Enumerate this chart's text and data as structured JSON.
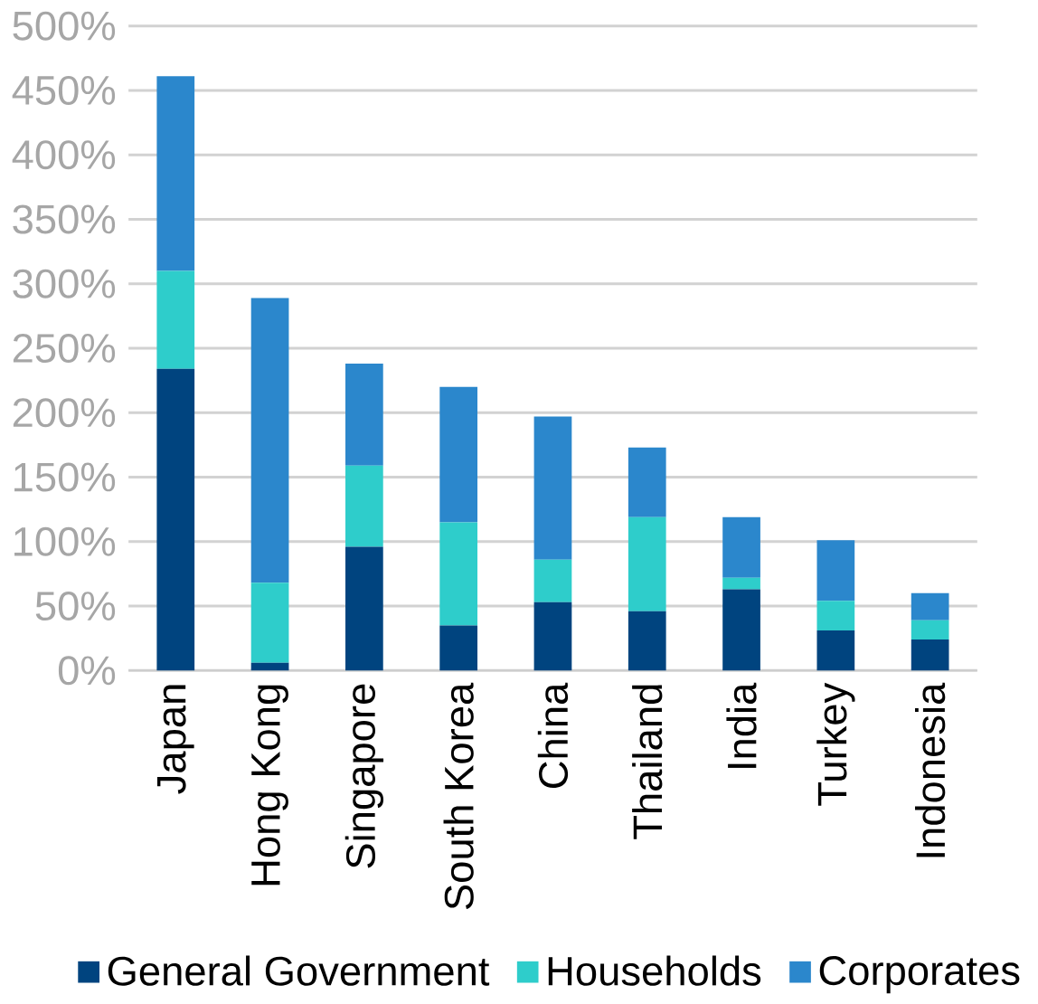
{
  "chart_data": {
    "type": "bar",
    "stacked": true,
    "categories": [
      "Japan",
      "Hong Kong",
      "Singapore",
      "South Korea",
      "China",
      "Thailand",
      "India",
      "Turkey",
      "Indonesia"
    ],
    "series": [
      {
        "name": "General Government",
        "color": "#00447f",
        "values": [
          234,
          6,
          96,
          35,
          53,
          46,
          63,
          31,
          24
        ]
      },
      {
        "name": "Households",
        "color": "#2ecdcb",
        "values": [
          76,
          62,
          63,
          80,
          33,
          73,
          9,
          23,
          15
        ]
      },
      {
        "name": "Corporates",
        "color": "#2b87cc",
        "values": [
          151,
          221,
          79,
          105,
          111,
          54,
          47,
          47,
          21
        ]
      }
    ],
    "ylim": [
      0,
      500
    ],
    "yticks": [
      {
        "value": 0,
        "label": "0%"
      },
      {
        "value": 50,
        "label": "50%"
      },
      {
        "value": 100,
        "label": "100%"
      },
      {
        "value": 150,
        "label": "150%"
      },
      {
        "value": 200,
        "label": "200%"
      },
      {
        "value": 250,
        "label": "250%"
      },
      {
        "value": 300,
        "label": "300%"
      },
      {
        "value": 350,
        "label": "350%"
      },
      {
        "value": 400,
        "label": "400%"
      },
      {
        "value": 450,
        "label": "450%"
      },
      {
        "value": 500,
        "label": "500%"
      }
    ],
    "grid": "y",
    "legend": "bottom"
  }
}
